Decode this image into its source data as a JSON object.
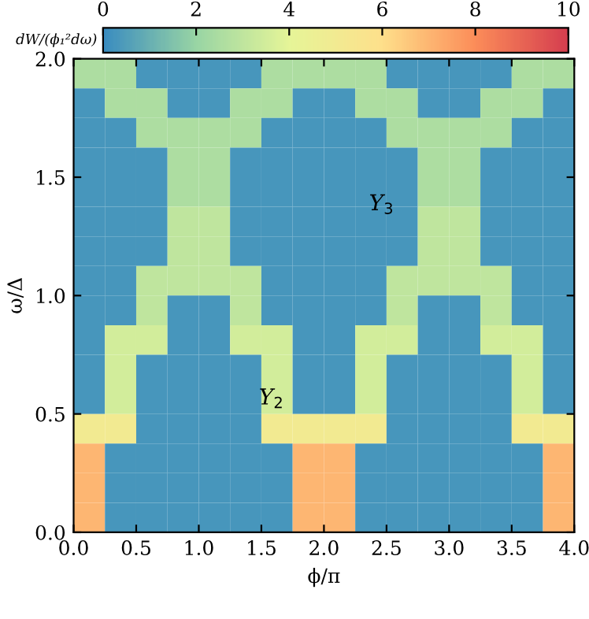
{
  "chart_data": {
    "type": "heatmap",
    "xlabel": "ϕ/π",
    "ylabel": "ω/Δ",
    "clabel": "dW/(ϕ₁²dω)",
    "xlim": [
      0,
      4
    ],
    "xticks": [
      {
        "value": 0,
        "label": "0.0"
      },
      0.5,
      {
        "value": 1,
        "label": "1.0"
      },
      1.5,
      {
        "value": 2,
        "label": "2.0"
      },
      2.5,
      {
        "value": 3,
        "label": "3.0"
      },
      3.5,
      {
        "value": 4,
        "label": "4.0"
      }
    ],
    "ylim": [
      0,
      2
    ],
    "yticks": [
      {
        "value": 0,
        "label": "0.0"
      },
      0.5,
      {
        "value": 1,
        "label": "1.0"
      },
      1.5,
      {
        "value": 2,
        "label": "2.0"
      }
    ],
    "clim": [
      0,
      10
    ],
    "cticks": [
      0,
      2,
      4,
      6,
      8,
      10
    ],
    "annotations": [
      "Y$_{2}$",
      "Y$_{3}$"
    ],
    "cells": [
      [
        2.5,
        2.5,
        0.3,
        0.3,
        0.3,
        0.3,
        2.5,
        2.5,
        2.5,
        2.5,
        0.3,
        0.3,
        0.3,
        0.3,
        2.5,
        2.5
      ],
      [
        0.3,
        2.5,
        2.5,
        0.3,
        0.3,
        2.5,
        2.5,
        0.3,
        0.3,
        2.5,
        2.5,
        0.3,
        0.3,
        2.5,
        2.5,
        0.3
      ],
      [
        0.3,
        0.3,
        2.5,
        2.5,
        2.5,
        2.5,
        0.3,
        0.3,
        0.3,
        0.3,
        2.5,
        2.5,
        2.5,
        2.5,
        0.3,
        0.3
      ],
      [
        0.3,
        0.3,
        0.3,
        2.5,
        2.5,
        0.3,
        0.3,
        0.3,
        0.3,
        0.3,
        0.3,
        2.5,
        2.5,
        0.3,
        0.3,
        0.3
      ],
      [
        0.3,
        0.3,
        0.3,
        2.5,
        2.5,
        0.3,
        0.3,
        0.3,
        0.3,
        0.3,
        0.3,
        2.5,
        2.5,
        0.3,
        0.3,
        0.3
      ],
      [
        0.3,
        0.3,
        0.3,
        3,
        3,
        0.3,
        0.3,
        0.3,
        0.3,
        0.3,
        0.3,
        3,
        3,
        0.3,
        0.3,
        0.3
      ],
      [
        0.3,
        0.3,
        0.3,
        3,
        3,
        0.3,
        0.3,
        0.3,
        0.3,
        0.3,
        0.3,
        3,
        3,
        0.3,
        0.3,
        0.3
      ],
      [
        0.3,
        0.3,
        3,
        3,
        3,
        3,
        0.3,
        0.3,
        0.3,
        0.3,
        3,
        3,
        3,
        3,
        0.3,
        0.3
      ],
      [
        0.3,
        0.3,
        3,
        0.3,
        0.3,
        3,
        0.3,
        0.3,
        0.3,
        0.3,
        3,
        0.3,
        0.3,
        3,
        0.3,
        0.3
      ],
      [
        0.3,
        3.5,
        3.5,
        0.3,
        0.3,
        3.5,
        3.5,
        0.3,
        0.3,
        3.5,
        3.5,
        0.3,
        0.3,
        3.5,
        3.5,
        0.3
      ],
      [
        0.3,
        3.5,
        0.3,
        0.3,
        0.3,
        0.3,
        3.5,
        0.3,
        0.3,
        3.5,
        0.3,
        0.3,
        0.3,
        0.3,
        3.5,
        0.3
      ],
      [
        0.3,
        3.5,
        0.3,
        0.3,
        0.3,
        0.3,
        3.5,
        0.3,
        0.3,
        3.5,
        0.3,
        0.3,
        0.3,
        0.3,
        3.5,
        0.3
      ],
      [
        5,
        5,
        0.3,
        0.3,
        0.3,
        0.3,
        5,
        5,
        5,
        5,
        0.3,
        0.3,
        0.3,
        0.3,
        5,
        5
      ],
      [
        7,
        0.3,
        0.3,
        0.3,
        0.3,
        0.3,
        0.3,
        7,
        7,
        0.3,
        0.3,
        0.3,
        0.3,
        0.3,
        0.3,
        7
      ],
      [
        7,
        0.3,
        0.3,
        0.3,
        0.3,
        0.3,
        0.3,
        7,
        7,
        0.3,
        0.3,
        0.3,
        0.3,
        0.3,
        0.3,
        7
      ],
      [
        7,
        0.3,
        0.3,
        0.3,
        0.3,
        0.3,
        0.3,
        7,
        7,
        0.3,
        0.3,
        0.3,
        0.3,
        0.3,
        0.3,
        7
      ]
    ]
  }
}
